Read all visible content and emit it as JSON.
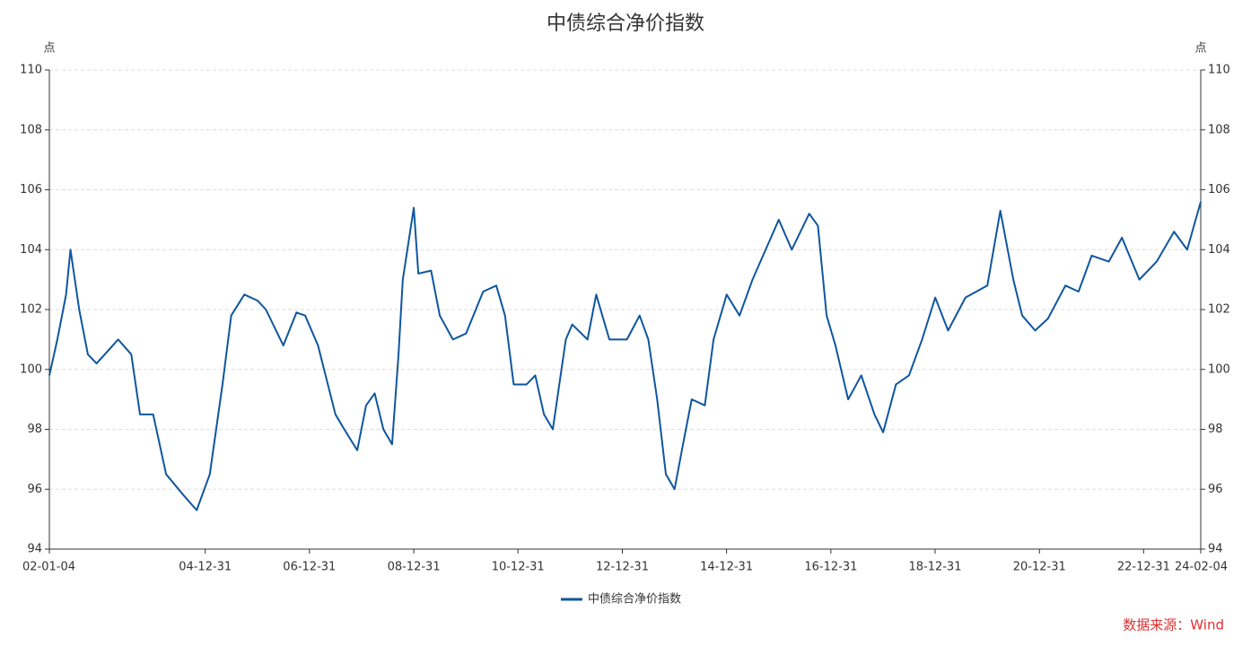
{
  "chart_data": {
    "type": "line",
    "title": "中债综合净价指数",
    "y_label": "点",
    "y2_label": "点",
    "source": "数据来源：Wind",
    "x": [
      "02-01-04",
      "02-03-01",
      "02-05-01",
      "02-06-01",
      "02-08-01",
      "02-10-01",
      "02-12-01",
      "03-05-01",
      "03-08-01",
      "03-10-01",
      "04-01-01",
      "04-04-01",
      "04-08-01",
      "04-11-01",
      "05-02-01",
      "05-05-01",
      "05-07-01",
      "05-10-01",
      "06-01-01",
      "06-03-01",
      "06-07-01",
      "06-10-01",
      "06-12-01",
      "07-03-01",
      "07-07-01",
      "07-09-01",
      "07-12-01",
      "08-02-01",
      "08-04-01",
      "08-06-01",
      "08-08-01",
      "08-09-15",
      "08-10-15",
      "08-12-31",
      "09-02-01",
      "09-05-01",
      "09-07-01",
      "09-10-01",
      "10-01-01",
      "10-05-01",
      "10-08-01",
      "10-10-01",
      "10-12-01",
      "11-03-01",
      "11-05-01",
      "11-07-01",
      "11-09-01",
      "11-12-01",
      "12-01-15",
      "12-05-01",
      "12-07-01",
      "12-10-01",
      "13-02-01",
      "13-05-01",
      "13-07-01",
      "13-09-01",
      "13-11-01",
      "14-01-01",
      "14-03-01",
      "14-05-01",
      "14-08-01",
      "14-10-01",
      "15-01-01",
      "15-04-01",
      "15-07-01",
      "15-10-01",
      "16-01-01",
      "16-04-01",
      "16-08-01",
      "16-10-01",
      "16-12-01",
      "17-02-01",
      "17-05-01",
      "17-08-01",
      "17-11-01",
      "18-01-01",
      "18-04-01",
      "18-07-01",
      "18-10-01",
      "19-01-01",
      "19-04-01",
      "19-08-01",
      "20-01-01",
      "20-04-01",
      "20-07-01",
      "20-09-01",
      "20-12-01",
      "21-03-01",
      "21-07-01",
      "21-10-01",
      "22-01-01",
      "22-05-01",
      "22-08-01",
      "22-12-01",
      "23-04-01",
      "23-08-01",
      "23-11-01",
      "24-02-04"
    ],
    "series": [
      {
        "name": "中债综合净价指数",
        "color": "#0f56a0",
        "values": [
          99.8,
          101,
          102.5,
          104,
          102,
          100.5,
          100.2,
          101,
          100.5,
          98.5,
          98.5,
          96.5,
          95.8,
          95.3,
          96.5,
          99.5,
          101.8,
          102.5,
          102.3,
          102,
          100.8,
          101.9,
          101.8,
          100.8,
          98.5,
          98,
          97.3,
          98.8,
          99.2,
          98,
          97.5,
          100.5,
          103,
          105.4,
          103.2,
          103.3,
          101.8,
          101,
          101.2,
          102.6,
          102.8,
          101.8,
          99.5,
          99.5,
          99.8,
          98.5,
          98,
          101,
          101.5,
          101,
          102.5,
          101,
          101,
          101.8,
          101,
          99,
          96.5,
          96,
          97.5,
          99,
          98.8,
          101,
          102.5,
          101.8,
          103,
          104,
          105,
          104,
          105.2,
          104.8,
          101.8,
          100.8,
          99,
          99.8,
          98.5,
          97.9,
          99.5,
          99.8,
          101,
          102.4,
          101.3,
          102.4,
          102.8,
          105.3,
          103,
          101.8,
          101.3,
          101.7,
          102.8,
          102.6,
          103.8,
          103.6,
          104.4,
          103,
          103.6,
          104.6,
          104,
          105.6
        ]
      }
    ],
    "xlim": [
      "02-01-04",
      "24-02-04"
    ],
    "xticks": [
      "02-01-04",
      "04-12-31",
      "06-12-31",
      "08-12-31",
      "10-12-31",
      "12-12-31",
      "14-12-31",
      "16-12-31",
      "18-12-31",
      "20-12-31",
      "22-12-31",
      "24-02-04"
    ],
    "ylim": [
      94,
      110
    ],
    "yticks": [
      94,
      96,
      98,
      100,
      102,
      104,
      106,
      108,
      110
    ],
    "y2lim": [
      94,
      110
    ],
    "y2ticks": [
      94,
      96,
      98,
      100,
      102,
      104,
      106,
      108,
      110
    ],
    "grid": true,
    "legend": "bottom"
  }
}
